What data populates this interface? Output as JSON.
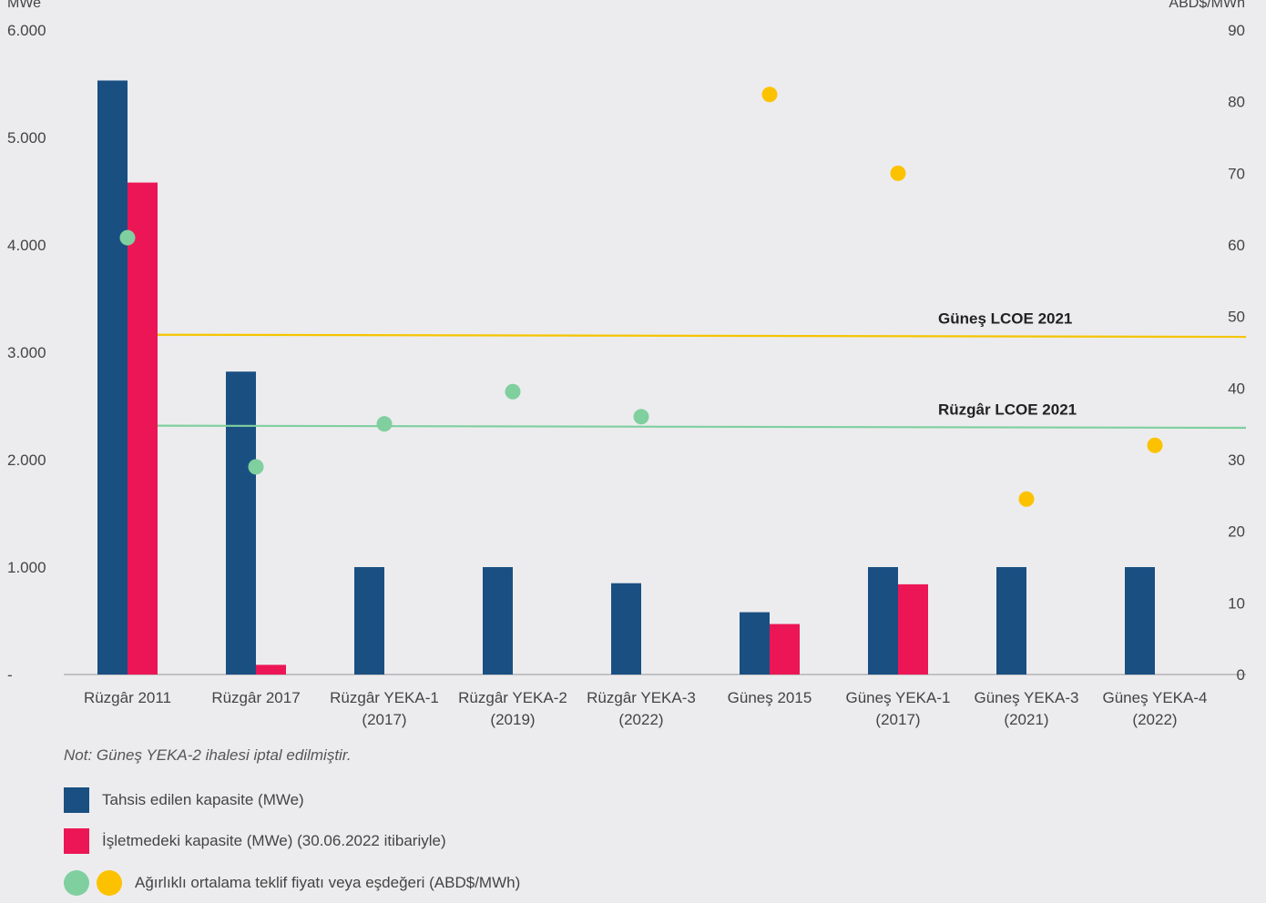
{
  "chart_data": {
    "type": "bar",
    "left_axis": {
      "unit": "MWe",
      "ylim": [
        0,
        6000
      ],
      "ticks": [
        "-",
        "1.000",
        "2.000",
        "3.000",
        "4.000",
        "5.000",
        "6.000"
      ]
    },
    "right_axis": {
      "unit": "ABD$/MWh",
      "ylim": [
        0,
        90
      ],
      "ticks": [
        "0",
        "10",
        "20",
        "30",
        "40",
        "50",
        "60",
        "70",
        "80",
        "90"
      ]
    },
    "categories": [
      [
        "Rüzgâr 2011"
      ],
      [
        "Rüzgâr 2017"
      ],
      [
        "Rüzgâr YEKA-1",
        "(2017)"
      ],
      [
        "Rüzgâr YEKA-2",
        "(2019)"
      ],
      [
        "Rüzgâr YEKA-3",
        "(2022)"
      ],
      [
        "Güneş 2015"
      ],
      [
        "Güneş YEKA-1",
        "(2017)"
      ],
      [
        "Güneş YEKA-3",
        "(2021)"
      ],
      [
        "Güneş YEKA-4",
        "(2022)"
      ]
    ],
    "series": [
      {
        "name": "Tahsis edilen kapasite (MWe)",
        "type": "bar",
        "color": "#1a4f82",
        "values": [
          5530,
          2820,
          1000,
          1000,
          850,
          580,
          1000,
          1000,
          1000
        ]
      },
      {
        "name": "İşletmedeki kapasite (MWe) (30.06.2022 itibariyle)",
        "type": "bar",
        "color": "#ec1656",
        "values": [
          4580,
          90,
          null,
          null,
          null,
          470,
          840,
          null,
          null
        ]
      },
      {
        "name": "Ağırlıklı ortalama teklif fiyatı veya eşdeğeri (ABD$/MWh)",
        "type": "scatter",
        "axis": "right",
        "values": [
          61,
          29,
          35,
          39.5,
          36,
          81,
          70,
          24.5,
          32
        ],
        "colors": [
          "#7fcf9f",
          "#7fcf9f",
          "#7fcf9f",
          "#7fcf9f",
          "#7fcf9f",
          "#fcc200",
          "#fcc200",
          "#fcc200",
          "#fcc200"
        ]
      }
    ],
    "reference_lines": [
      {
        "label": "Güneş LCOE 2021",
        "color": "#f5c400",
        "value": 47.3,
        "axis": "right"
      },
      {
        "label": "Rüzgâr LCOE 2021",
        "color": "#7fcf9f",
        "value": 34.6,
        "axis": "right"
      }
    ],
    "note": "Not: Güneş YEKA-2 ihalesi iptal edilmiştir."
  },
  "legend": {
    "allocated": "Tahsis edilen kapasite (MWe)",
    "operating": "İşletmedeki kapasite (MWe) (30.06.2022 itibariyle)",
    "price": "Ağırlıklı ortalama teklif fiyatı veya eşdeğeri (ABD$/MWh)",
    "colors": {
      "allocated": "#1a4f82",
      "operating": "#ec1656",
      "wind": "#7fcf9f",
      "solar": "#fcc200"
    }
  }
}
